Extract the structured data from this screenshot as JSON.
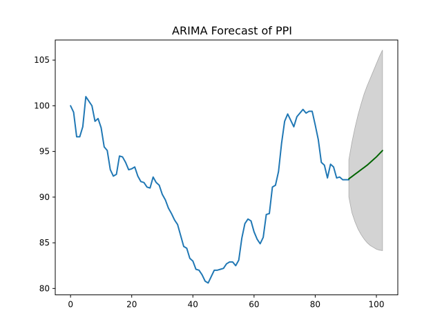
{
  "chart_data": {
    "type": "line",
    "title": "ARIMA Forecast of PPI",
    "xlabel": "",
    "ylabel": "",
    "xlim": [
      -5,
      107
    ],
    "ylim": [
      79.3,
      107.2
    ],
    "grid": false,
    "x_ticks": [
      0,
      20,
      40,
      60,
      80,
      100
    ],
    "y_ticks": [
      80,
      85,
      90,
      95,
      100,
      105
    ],
    "series": [
      {
        "color": "#1f77b4",
        "x": [
          0,
          1,
          2,
          3,
          4,
          5,
          6,
          7,
          8,
          9,
          10,
          11,
          12,
          13,
          14,
          15,
          16,
          17,
          18,
          19,
          20,
          21,
          22,
          23,
          24,
          25,
          26,
          27,
          28,
          29,
          30,
          31,
          32,
          33,
          34,
          35,
          36,
          37,
          38,
          39,
          40,
          41,
          42,
          43,
          44,
          45,
          46,
          47,
          48,
          49,
          50,
          51,
          52,
          53,
          54,
          55,
          56,
          57,
          58,
          59,
          60,
          61,
          62,
          63,
          64,
          65,
          66,
          67,
          68,
          69,
          70,
          71,
          72,
          73,
          74,
          75,
          76,
          77,
          78,
          79,
          80,
          81,
          82,
          83,
          84,
          85,
          86,
          87,
          88,
          89,
          90,
          91
        ],
        "y": [
          100.0,
          99.3,
          96.6,
          96.6,
          97.7,
          101.0,
          100.5,
          100.0,
          98.3,
          98.6,
          97.6,
          95.5,
          95.1,
          93.0,
          92.3,
          92.5,
          94.5,
          94.4,
          93.8,
          93.0,
          93.1,
          93.3,
          92.3,
          91.7,
          91.6,
          91.1,
          91.0,
          92.2,
          91.6,
          91.3,
          90.3,
          89.7,
          88.8,
          88.2,
          87.5,
          87.0,
          85.8,
          84.6,
          84.4,
          83.3,
          83.0,
          82.1,
          82.0,
          81.5,
          80.8,
          80.6,
          81.3,
          82.0,
          82.0,
          82.1,
          82.2,
          82.7,
          82.9,
          82.9,
          82.5,
          83.1,
          85.5,
          87.1,
          87.6,
          87.4,
          86.2,
          85.4,
          84.9,
          85.6,
          88.1,
          88.2,
          91.1,
          91.3,
          92.8,
          95.9,
          98.3,
          99.1,
          98.4,
          97.7,
          98.8,
          99.2,
          99.6,
          99.2,
          99.4,
          99.4,
          97.9,
          96.3,
          93.8,
          93.5,
          92.1,
          93.6,
          93.3,
          92.1,
          92.2,
          91.9,
          91.9,
          91.9
        ]
      },
      {
        "color": "#006400",
        "x": [
          91,
          92,
          93,
          94,
          95,
          96,
          97,
          98,
          99,
          100,
          101,
          102
        ],
        "y": [
          92.0,
          92.25,
          92.5,
          92.75,
          93.0,
          93.25,
          93.5,
          93.8,
          94.1,
          94.4,
          94.75,
          95.1
        ]
      }
    ],
    "confidence_band": {
      "color": "#d3d3d3",
      "edge_color": "#a9a9a9",
      "x": [
        91,
        92,
        93,
        94,
        95,
        96,
        97,
        98,
        99,
        100,
        101,
        102
      ],
      "lower": [
        90.0,
        88.3,
        87.3,
        86.5,
        85.9,
        85.4,
        85.0,
        84.7,
        84.5,
        84.3,
        84.2,
        84.15
      ],
      "upper": [
        94.1,
        96.0,
        97.6,
        99.0,
        100.2,
        101.3,
        102.2,
        103.0,
        103.8,
        104.6,
        105.4,
        106.1
      ]
    }
  }
}
